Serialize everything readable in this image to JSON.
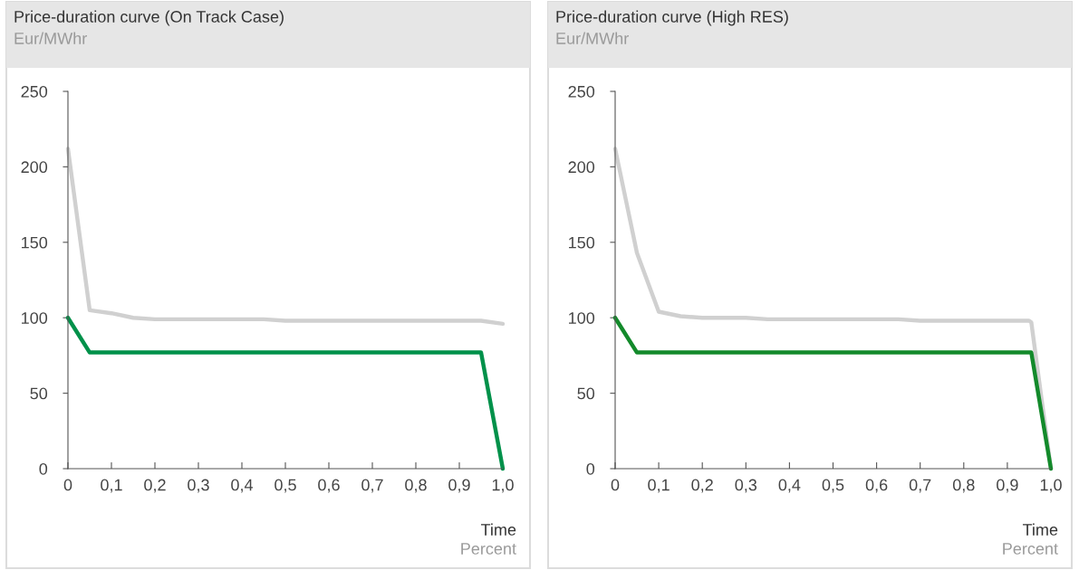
{
  "chart_data": [
    {
      "type": "line",
      "title": "Price-duration curve (On Track Case)",
      "ylabel": "Eur/MWhr",
      "xlabel": "Time",
      "annotations": [
        "Percent"
      ],
      "xlim": [
        0,
        1.0
      ],
      "ylim": [
        0,
        250
      ],
      "xticks": [
        {
          "value": 0,
          "label": "0"
        },
        {
          "value": 0.1,
          "label": "0,1"
        },
        {
          "value": 0.2,
          "label": "0,2"
        },
        {
          "value": 0.3,
          "label": "0,3"
        },
        {
          "value": 0.4,
          "label": "0,4"
        },
        {
          "value": 0.5,
          "label": "0,5"
        },
        {
          "value": 0.6,
          "label": "0,6"
        },
        {
          "value": 0.7,
          "label": "0,7"
        },
        {
          "value": 0.8,
          "label": "0,8"
        },
        {
          "value": 0.9,
          "label": "0,9"
        },
        {
          "value": 1.0,
          "label": "1,0"
        }
      ],
      "yticks": [
        0,
        50,
        100,
        150,
        200,
        250
      ],
      "grid": false,
      "legend": false,
      "series": [
        {
          "color": "#d0d0d0",
          "x": [
            0,
            0.05,
            0.1,
            0.15,
            0.2,
            0.45,
            0.5,
            0.95,
            1.0
          ],
          "values": [
            212,
            105,
            103,
            100,
            99,
            99,
            98,
            98,
            96
          ]
        },
        {
          "color": "#00914a",
          "x": [
            0,
            0.05,
            0.95,
            1.0
          ],
          "values": [
            100,
            77,
            77,
            0
          ]
        }
      ]
    },
    {
      "type": "line",
      "title": "Price-duration curve (High RES)",
      "ylabel": "Eur/MWhr",
      "xlabel": "Time",
      "annotations": [
        "Percent"
      ],
      "xlim": [
        0,
        1.0
      ],
      "ylim": [
        0,
        250
      ],
      "xticks": [
        {
          "value": 0,
          "label": "0"
        },
        {
          "value": 0.1,
          "label": "0,1"
        },
        {
          "value": 0.2,
          "label": "0,2"
        },
        {
          "value": 0.3,
          "label": "0,3"
        },
        {
          "value": 0.4,
          "label": "0,4"
        },
        {
          "value": 0.5,
          "label": "0,5"
        },
        {
          "value": 0.6,
          "label": "0,6"
        },
        {
          "value": 0.7,
          "label": "0,7"
        },
        {
          "value": 0.8,
          "label": "0,8"
        },
        {
          "value": 0.9,
          "label": "0,9"
        },
        {
          "value": 1.0,
          "label": "1,0"
        }
      ],
      "yticks": [
        0,
        50,
        100,
        150,
        200,
        250
      ],
      "grid": false,
      "legend": false,
      "series": [
        {
          "color": "#d0d0d0",
          "x": [
            0,
            0.05,
            0.1,
            0.15,
            0.2,
            0.3,
            0.35,
            0.65,
            0.7,
            0.95,
            0.955,
            1.0
          ],
          "values": [
            212,
            143,
            104,
            101,
            100,
            100,
            99,
            99,
            98,
            98,
            97,
            0
          ]
        },
        {
          "color": "#138a2b",
          "x": [
            0,
            0.05,
            0.955,
            1.0
          ],
          "values": [
            100,
            77,
            77,
            0
          ]
        }
      ]
    }
  ]
}
